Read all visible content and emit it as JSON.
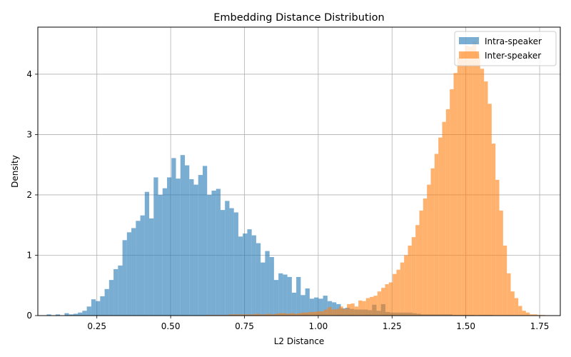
{
  "chart_data": {
    "type": "bar",
    "title": "Embedding Distance Distribution",
    "xlabel": "L2 Distance",
    "ylabel": "Density",
    "xlim": [
      0.05,
      1.82
    ],
    "ylim": [
      0,
      4.78
    ],
    "x_ticks": [
      0.25,
      0.5,
      0.75,
      1.0,
      1.25,
      1.5,
      1.75
    ],
    "x_tick_labels": [
      "0.25",
      "0.50",
      "0.75",
      "1.00",
      "1.25",
      "1.50",
      "1.75"
    ],
    "y_ticks": [
      0,
      1,
      2,
      3,
      4
    ],
    "y_tick_labels": [
      "0",
      "1",
      "2",
      "3",
      "4"
    ],
    "grid": true,
    "legend_position": "top-right",
    "series": [
      {
        "name": "Intra-speaker",
        "color": "#1f77b4",
        "alpha": 0.6,
        "bin_start": 0.08,
        "bin_width": 0.0151,
        "values": [
          0.02,
          0.0,
          0.02,
          0.0,
          0.04,
          0.02,
          0.03,
          0.05,
          0.08,
          0.15,
          0.27,
          0.24,
          0.32,
          0.44,
          0.59,
          0.77,
          0.83,
          1.25,
          1.38,
          1.45,
          1.57,
          1.66,
          2.05,
          1.61,
          2.29,
          2.0,
          2.11,
          2.29,
          2.61,
          2.27,
          2.66,
          2.49,
          2.26,
          2.17,
          2.33,
          2.48,
          2.0,
          2.07,
          2.1,
          1.75,
          1.9,
          1.78,
          1.71,
          1.31,
          1.36,
          1.43,
          1.33,
          1.2,
          0.88,
          1.07,
          0.97,
          0.59,
          0.7,
          0.68,
          0.64,
          0.38,
          0.64,
          0.34,
          0.45,
          0.28,
          0.3,
          0.28,
          0.33,
          0.24,
          0.22,
          0.19,
          0.12,
          0.13,
          0.11,
          0.1,
          0.1,
          0.1,
          0.09,
          0.18,
          0.08,
          0.19,
          0.06,
          0.05,
          0.05,
          0.05,
          0.05,
          0.05,
          0.04,
          0.03,
          0.02,
          0.02,
          0.02,
          0.02,
          0.02,
          0.02,
          0.02,
          0.01,
          0.01,
          0.01,
          0.01,
          0.01,
          0.0,
          0.01,
          0.01,
          0.01,
          0.0
        ]
      },
      {
        "name": "Inter-speaker",
        "color": "#ff7f0e",
        "alpha": 0.6,
        "bin_start": 0.62,
        "bin_width": 0.0129,
        "values": [
          0.01,
          0.01,
          0.01,
          0.01,
          0.01,
          0.01,
          0.02,
          0.02,
          0.02,
          0.02,
          0.02,
          0.02,
          0.02,
          0.03,
          0.02,
          0.02,
          0.03,
          0.02,
          0.03,
          0.04,
          0.04,
          0.03,
          0.04,
          0.03,
          0.04,
          0.05,
          0.05,
          0.06,
          0.06,
          0.07,
          0.07,
          0.1,
          0.14,
          0.1,
          0.11,
          0.15,
          0.11,
          0.19,
          0.2,
          0.15,
          0.25,
          0.24,
          0.29,
          0.31,
          0.33,
          0.4,
          0.46,
          0.52,
          0.55,
          0.69,
          0.76,
          0.88,
          1.0,
          1.16,
          1.3,
          1.5,
          1.74,
          1.94,
          2.17,
          2.44,
          2.68,
          2.95,
          3.21,
          3.42,
          3.75,
          4.02,
          4.27,
          4.36,
          4.47,
          4.46,
          4.54,
          4.34,
          4.09,
          3.88,
          3.51,
          2.85,
          2.25,
          1.74,
          1.16,
          0.7,
          0.4,
          0.29,
          0.16,
          0.08,
          0.05,
          0.02,
          0.02,
          0.01,
          0.01
        ]
      }
    ]
  }
}
